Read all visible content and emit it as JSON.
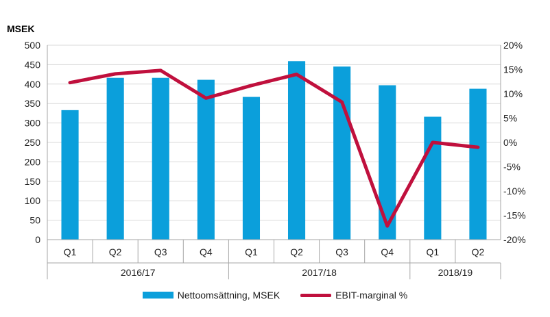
{
  "chart_data": {
    "type": "bar",
    "y_unit_label": "MSEK",
    "categories": [
      "Q1",
      "Q2",
      "Q3",
      "Q4",
      "Q1",
      "Q2",
      "Q3",
      "Q4",
      "Q1",
      "Q2"
    ],
    "groups": [
      {
        "label": "2016/17",
        "span": 4
      },
      {
        "label": "2017/18",
        "span": 4
      },
      {
        "label": "2018/19",
        "span": 2
      }
    ],
    "series": [
      {
        "name": "Nettoomsättning, MSEK",
        "type": "bar",
        "axis": "left",
        "color": "#0b9fdb",
        "values": [
          333,
          416,
          416,
          411,
          367,
          459,
          445,
          397,
          316,
          388
        ]
      },
      {
        "name": "EBIT-marginal %",
        "type": "line",
        "axis": "right",
        "color": "#c0103d",
        "values": [
          12.3,
          14.1,
          14.8,
          9.1,
          11.7,
          14.0,
          8.3,
          -17.2,
          0.0,
          -1.0
        ]
      }
    ],
    "y_left": {
      "min": 0,
      "max": 500,
      "step": 50,
      "ticks": [
        "0",
        "50",
        "100",
        "150",
        "200",
        "250",
        "300",
        "350",
        "400",
        "450",
        "500"
      ]
    },
    "y_right": {
      "min": -20,
      "max": 20,
      "step": 5,
      "ticks": [
        "-20%",
        "-15%",
        "-10%",
        "-5%",
        "0%",
        "5%",
        "10%",
        "15%",
        "20%"
      ]
    },
    "grid": true,
    "legend_position": "bottom"
  },
  "colors": {
    "grid": "#d9d9d9",
    "axis": "#a6a6a6"
  }
}
